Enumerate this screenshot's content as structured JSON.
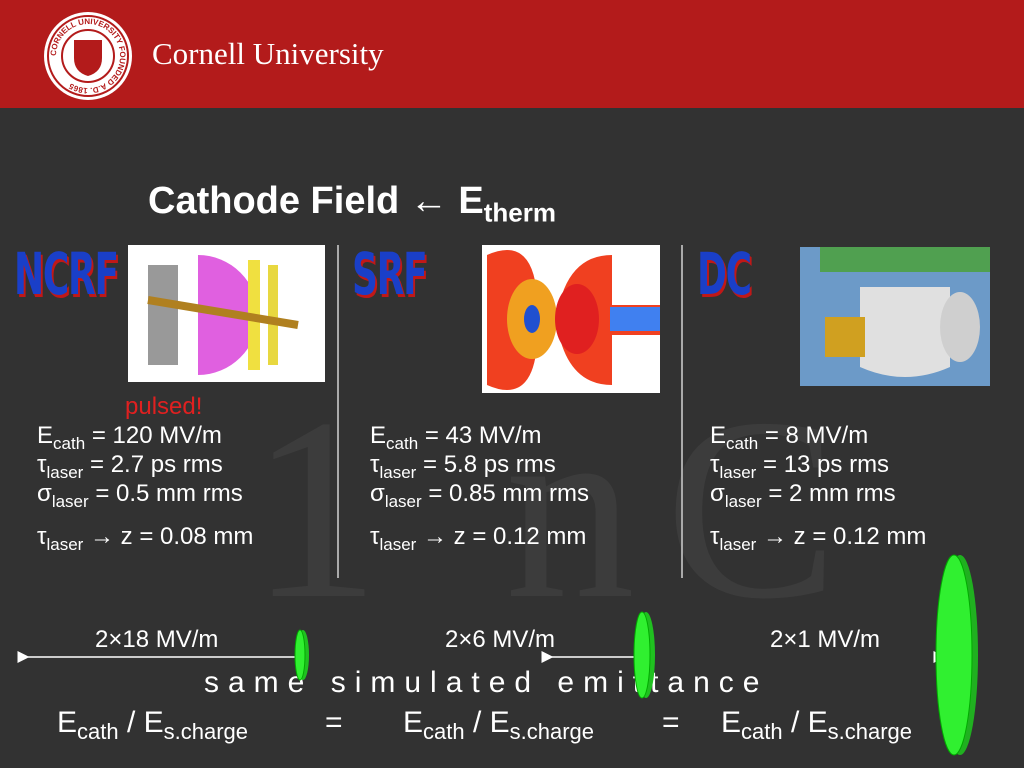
{
  "header": {
    "university": "Cornell University",
    "seal_text": "CORNELL UNIVERSITY FOUNDED A.D. 1865"
  },
  "title": {
    "text": "Cathode Field ← E",
    "sub": "therm"
  },
  "watermark": "1 nC",
  "note": "pulsed!",
  "columns": [
    {
      "label": "NCRF",
      "lines": [
        {
          "sym": "E",
          "sub": "cath",
          "text": " = 120 MV/m"
        },
        {
          "sym": "τ",
          "sub": "laser",
          "text": " = 2.7 ps rms"
        },
        {
          "sym": "σ",
          "sub": "laser",
          "text": " = 0.5 mm rms"
        },
        {
          "sym": "τ",
          "sub": "laser",
          "text": " → z = 0.08 mm"
        }
      ],
      "field": "2×18 MV/m"
    },
    {
      "label": "SRF",
      "lines": [
        {
          "sym": "E",
          "sub": "cath",
          "text": " = 43 MV/m"
        },
        {
          "sym": "τ",
          "sub": "laser",
          "text": " = 5.8 ps rms"
        },
        {
          "sym": "σ",
          "sub": "laser",
          "text": " = 0.85 mm rms"
        },
        {
          "sym": "τ",
          "sub": "laser",
          "text": " → z = 0.12 mm"
        }
      ],
      "field": "2×6 MV/m"
    },
    {
      "label": "DC",
      "lines": [
        {
          "sym": "E",
          "sub": "cath",
          "text": " = 8 MV/m"
        },
        {
          "sym": "τ",
          "sub": "laser",
          "text": " = 13 ps rms"
        },
        {
          "sym": "σ",
          "sub": "laser",
          "text": " = 2 mm rms"
        },
        {
          "sym": "τ",
          "sub": "laser",
          "text": " → z = 0.12 mm"
        }
      ],
      "field": "2×1 MV/m"
    }
  ],
  "caption": "same simulated emittance",
  "equation": [
    {
      "sym": "E",
      "sub": "cath",
      "mid": " / E",
      "sub2": "s.charge"
    },
    {
      "eq": "="
    },
    {
      "sym": "E",
      "sub": "cath",
      "mid": " / E",
      "sub2": "s.charge"
    },
    {
      "eq": "="
    },
    {
      "sym": "E",
      "sub": "cath",
      "mid": " / E",
      "sub2": "s.charge"
    }
  ]
}
